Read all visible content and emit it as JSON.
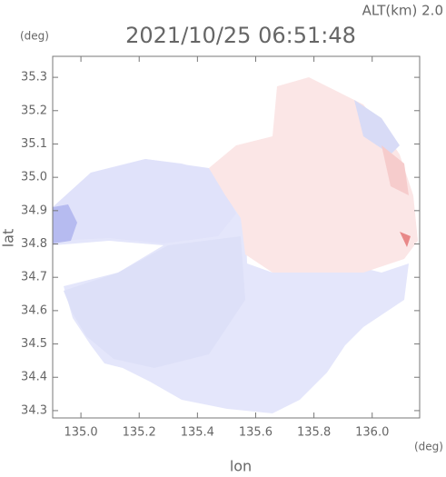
{
  "chart_data": {
    "type": "radar-map",
    "title": "2021/10/25 06:51:48",
    "subtitle": "ALT(km) 2.0",
    "x_label": "lon",
    "y_label": "lat",
    "x_unit": "(deg)",
    "y_unit": "(deg)",
    "xlim": [
      134.903,
      136.163
    ],
    "ylim": [
      34.278,
      35.363
    ],
    "xticks": [
      {
        "value": 135.0,
        "label": "135.0"
      },
      135.2,
      135.4,
      135.6,
      135.8,
      {
        "value": 136.0,
        "label": "136.0"
      }
    ],
    "yticks": [
      34.3,
      34.4,
      34.5,
      34.6,
      34.7,
      34.8,
      34.9,
      {
        "value": 35.0,
        "label": "35.0"
      },
      35.1,
      35.2,
      35.3
    ],
    "grid": false
  }
}
